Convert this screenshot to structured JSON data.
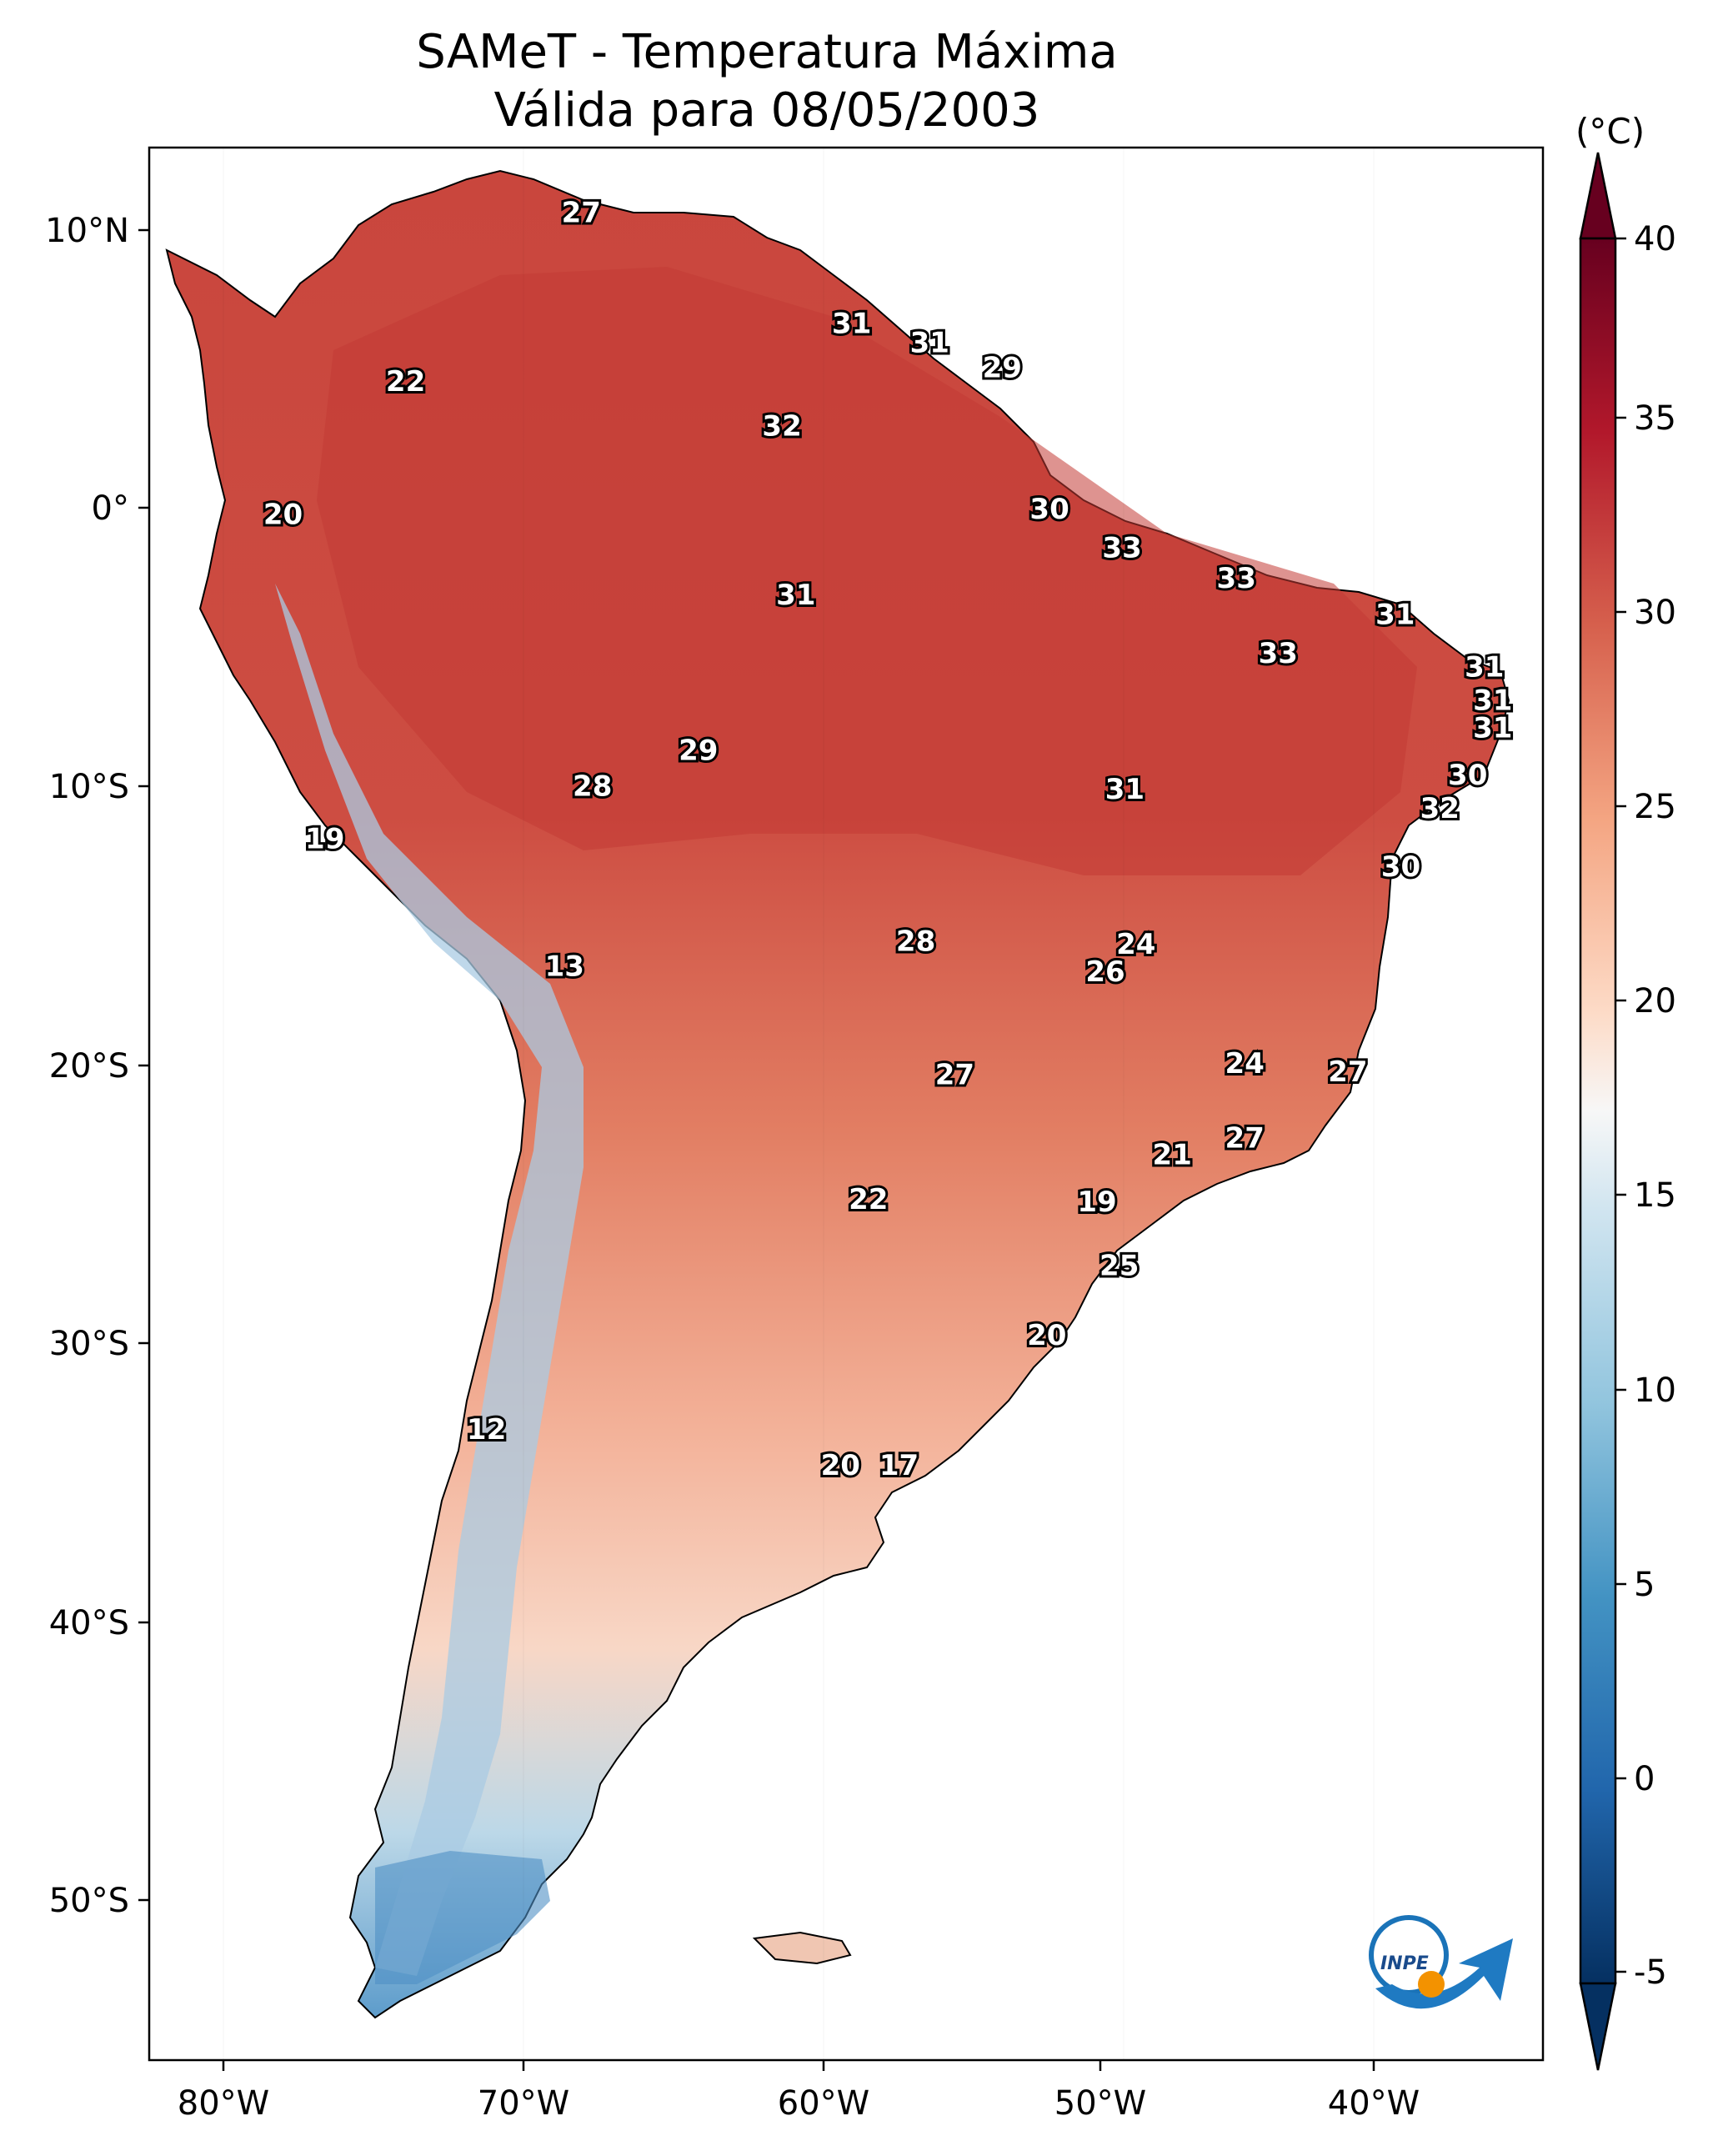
{
  "title": {
    "line1": "SAMeT - Temperatura Máxima",
    "line2": "Válida para 08/05/2003"
  },
  "map": {
    "lon_ticks": [
      "80°W",
      "70°W",
      "60°W",
      "50°W",
      "40°W"
    ],
    "lat_ticks": [
      "10°N",
      "0°",
      "10°S",
      "20°S",
      "30°S",
      "40°S",
      "50°S"
    ],
    "extent": {
      "lon_min": -83,
      "lon_max": -33,
      "lat_min": -56,
      "lat_max": 13
    }
  },
  "labels": [
    {
      "text": "27",
      "lon": -67.5,
      "lat": 10.6
    },
    {
      "text": "31",
      "lon": -57.8,
      "lat": 6.6
    },
    {
      "text": "31",
      "lon": -55.0,
      "lat": 5.9
    },
    {
      "text": "29",
      "lon": -52.4,
      "lat": 5.0
    },
    {
      "text": "22",
      "lon": -73.8,
      "lat": 4.5
    },
    {
      "text": "32",
      "lon": -60.3,
      "lat": 2.9
    },
    {
      "text": "20",
      "lon": -78.2,
      "lat": -0.3
    },
    {
      "text": "30",
      "lon": -50.7,
      "lat": -0.1
    },
    {
      "text": "33",
      "lon": -48.1,
      "lat": -1.5
    },
    {
      "text": "31",
      "lon": -59.8,
      "lat": -3.2
    },
    {
      "text": "33",
      "lon": -44.0,
      "lat": -2.6
    },
    {
      "text": "31",
      "lon": -38.3,
      "lat": -3.9
    },
    {
      "text": "33",
      "lon": -42.5,
      "lat": -5.3
    },
    {
      "text": "31",
      "lon": -35.1,
      "lat": -5.8
    },
    {
      "text": "31",
      "lon": -34.8,
      "lat": -7.0
    },
    {
      "text": "31",
      "lon": -34.8,
      "lat": -8.0
    },
    {
      "text": "29",
      "lon": -63.3,
      "lat": -8.8
    },
    {
      "text": "28",
      "lon": -67.1,
      "lat": -10.1
    },
    {
      "text": "30",
      "lon": -35.7,
      "lat": -9.7
    },
    {
      "text": "31",
      "lon": -48.0,
      "lat": -10.2
    },
    {
      "text": "32",
      "lon": -36.7,
      "lat": -10.9
    },
    {
      "text": "19",
      "lon": -76.7,
      "lat": -12.0
    },
    {
      "text": "30",
      "lon": -38.1,
      "lat": -13.0
    },
    {
      "text": "28",
      "lon": -55.5,
      "lat": -15.7
    },
    {
      "text": "24",
      "lon": -47.6,
      "lat": -15.8
    },
    {
      "text": "26",
      "lon": -48.7,
      "lat": -16.8
    },
    {
      "text": "13",
      "lon": -68.1,
      "lat": -16.6
    },
    {
      "text": "24",
      "lon": -43.7,
      "lat": -20.1
    },
    {
      "text": "27",
      "lon": -40.0,
      "lat": -20.4
    },
    {
      "text": "27",
      "lon": -54.1,
      "lat": -20.5
    },
    {
      "text": "27",
      "lon": -43.7,
      "lat": -22.8
    },
    {
      "text": "21",
      "lon": -46.3,
      "lat": -23.4
    },
    {
      "text": "22",
      "lon": -57.2,
      "lat": -25.0
    },
    {
      "text": "19",
      "lon": -49.0,
      "lat": -25.1
    },
    {
      "text": "25",
      "lon": -48.2,
      "lat": -27.4
    },
    {
      "text": "20",
      "lon": -50.8,
      "lat": -29.9
    },
    {
      "text": "12",
      "lon": -70.9,
      "lat": -33.3
    },
    {
      "text": "20",
      "lon": -58.2,
      "lat": -34.6
    },
    {
      "text": "17",
      "lon": -56.1,
      "lat": -34.6
    }
  ],
  "colorbar": {
    "unit": "(°C)",
    "ticks": [
      "40",
      "35",
      "30",
      "25",
      "20",
      "15",
      "10",
      "5",
      "0",
      "-5"
    ],
    "colors": [
      "#053061",
      "#2166ac",
      "#4393c3",
      "#92c5de",
      "#d1e5f0",
      "#f7f7f7",
      "#fddbc7",
      "#f4a582",
      "#d6604d",
      "#b2182b",
      "#67001f"
    ]
  },
  "logo": {
    "text": "INPE"
  }
}
